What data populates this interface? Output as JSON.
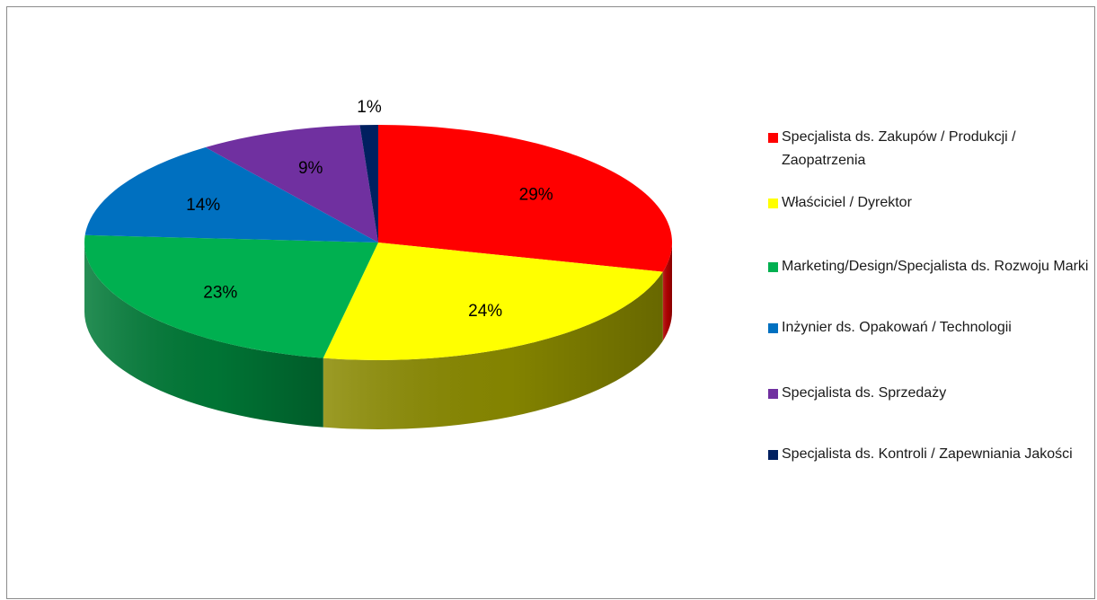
{
  "chart_data": {
    "type": "pie",
    "three_d": true,
    "slices": [
      {
        "label": "Specjalista ds. Zakupów / Produkcji / Zaopatrzenia",
        "value": 29,
        "display": "29%",
        "color": "#ff0000",
        "side_color": "#b30000"
      },
      {
        "label": "Właściciel / Dyrektor",
        "value": 24,
        "display": "24%",
        "color": "#ffff00",
        "side_color": "#8a8a00"
      },
      {
        "label": "Marketing/Design/Specjalista ds. Rozwoju Marki",
        "value": 23,
        "display": "23%",
        "color": "#00b050",
        "side_color": "#007a37"
      },
      {
        "label": "Inżynier ds. Opakowań / Technologii",
        "value": 14,
        "display": "14%",
        "color": "#0070c0",
        "side_color": "#004b80"
      },
      {
        "label": "Specjalista ds. Sprzedaży",
        "value": 9,
        "display": "9%",
        "color": "#7030a0",
        "side_color": "#4a1f6b"
      },
      {
        "label": "Specjalista ds. Kontroli / Zapewniania Jakości",
        "value": 1,
        "display": "1%",
        "color": "#002060",
        "side_color": "#001540"
      }
    ],
    "legend_position": "right",
    "start_angle": "top, clockwise"
  }
}
